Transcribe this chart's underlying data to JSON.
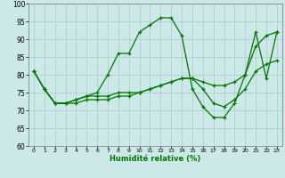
{
  "xlabel": "Humidité relative (%)",
  "background_color": "#cce8e8",
  "grid_color": "#aacccc",
  "line_color": "#007700",
  "xlim": [
    -0.5,
    23.5
  ],
  "ylim": [
    60,
    100
  ],
  "yticks": [
    60,
    65,
    70,
    75,
    80,
    85,
    90,
    95,
    100
  ],
  "xticks": [
    0,
    1,
    2,
    3,
    4,
    5,
    6,
    7,
    8,
    9,
    10,
    11,
    12,
    13,
    14,
    15,
    16,
    17,
    18,
    19,
    20,
    21,
    22,
    23
  ],
  "line1_x": [
    0,
    1,
    2,
    3,
    4,
    5,
    6,
    7,
    8,
    9,
    10,
    11,
    12,
    13,
    14,
    15,
    16,
    17,
    18,
    19,
    20,
    21,
    22,
    23
  ],
  "line1_y": [
    81,
    76,
    72,
    72,
    73,
    74,
    75,
    80,
    86,
    86,
    92,
    94,
    96,
    96,
    91,
    76,
    71,
    68,
    68,
    72,
    80,
    92,
    79,
    92
  ],
  "line2_x": [
    0,
    1,
    2,
    3,
    4,
    5,
    6,
    7,
    8,
    9,
    10,
    11,
    12,
    13,
    14,
    15,
    16,
    17,
    18,
    19,
    20,
    21,
    22,
    23
  ],
  "line2_y": [
    81,
    76,
    72,
    72,
    72,
    73,
    73,
    73,
    74,
    74,
    75,
    76,
    77,
    78,
    79,
    79,
    78,
    77,
    77,
    78,
    80,
    88,
    91,
    92
  ],
  "line3_x": [
    0,
    1,
    2,
    3,
    4,
    5,
    6,
    7,
    8,
    9,
    10,
    11,
    12,
    13,
    14,
    15,
    16,
    17,
    18,
    19,
    20,
    21,
    22,
    23
  ],
  "line3_y": [
    81,
    76,
    72,
    72,
    73,
    74,
    74,
    74,
    75,
    75,
    75,
    76,
    77,
    78,
    79,
    79,
    76,
    72,
    71,
    73,
    76,
    81,
    83,
    84
  ]
}
